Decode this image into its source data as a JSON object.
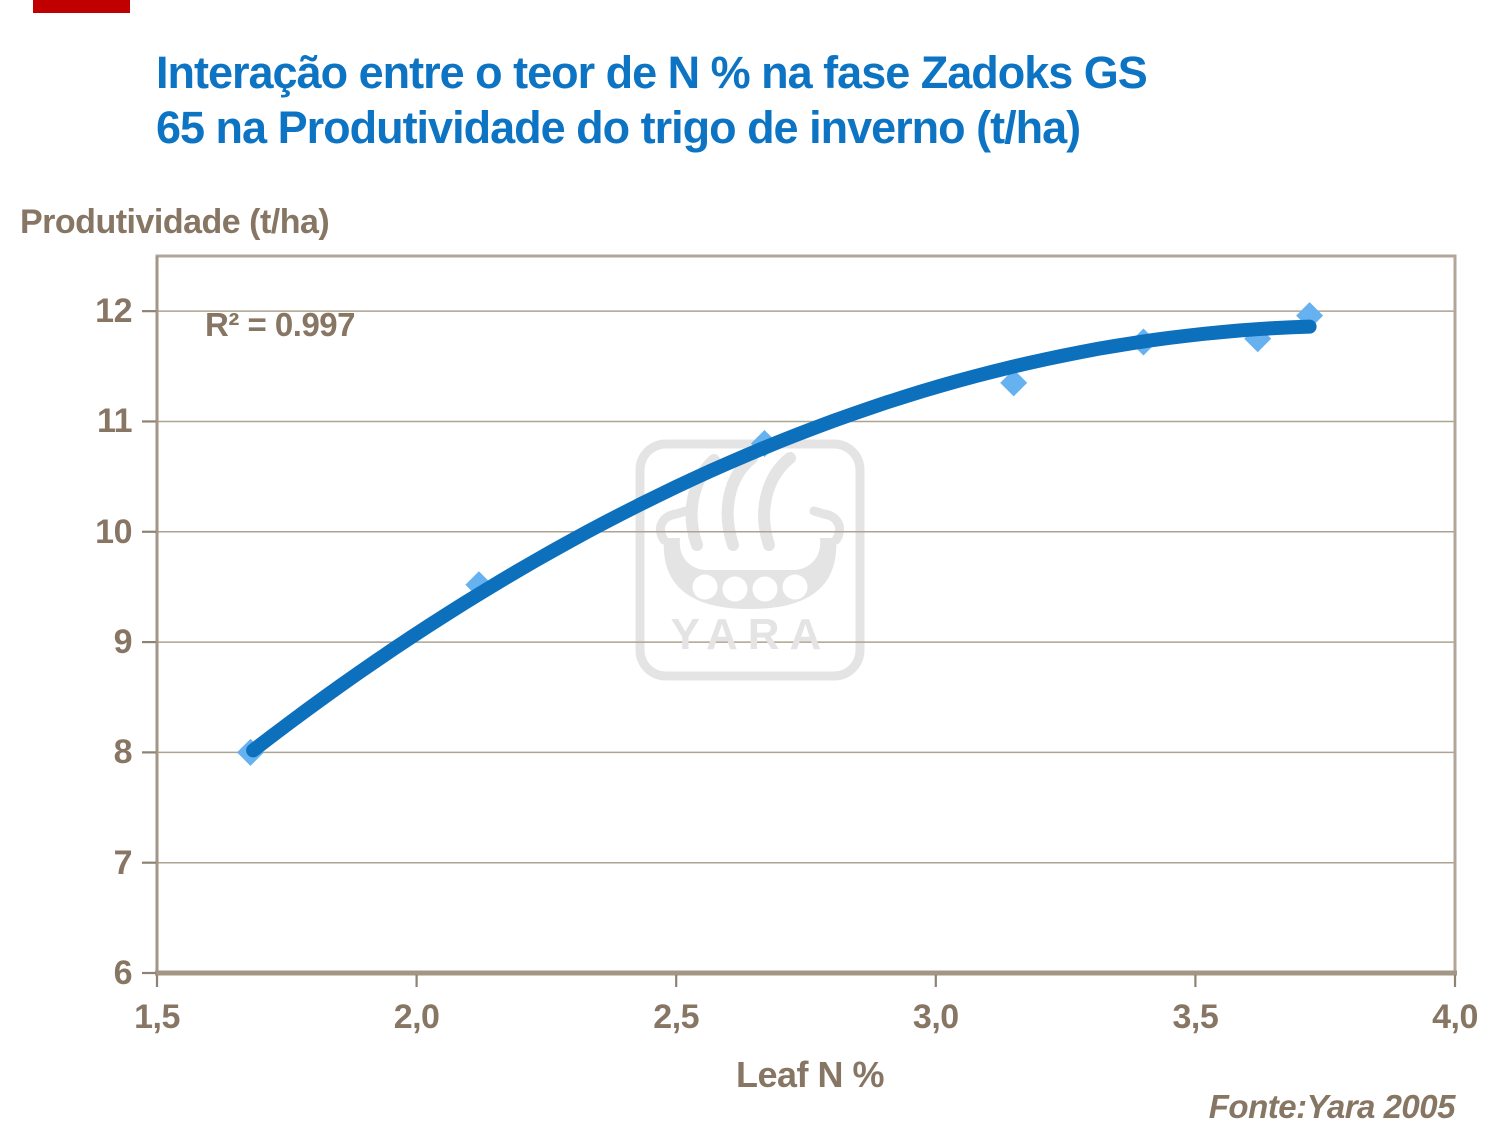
{
  "accent_bar_color": "#C00000",
  "title": {
    "text": "Interação entre o teor de N % na fase Zadoks GS\n65 na Produtividade do trigo de inverno (t/ha)",
    "color": "#0D74C4"
  },
  "source_note": "Fonte:Yara 2005",
  "watermark": {
    "text": "YARA",
    "color": "#E4E4E4"
  },
  "chart_data": {
    "type": "scatter",
    "title": "Interação entre o teor de N % na fase Zadoks GS 65 na Produtividade do trigo de inverno (t/ha)",
    "ylabel": "Produtividade (t/ha)",
    "xlabel": "Leaf N %",
    "r2_annotation": "R² = 0.997",
    "xlim": [
      1.5,
      4.0
    ],
    "ylim": [
      6,
      12.5
    ],
    "grid": "horizontal",
    "legend": "none",
    "x_ticks": {
      "values": [
        1.5,
        2.0,
        2.5,
        3.0,
        3.5,
        4.0
      ],
      "labels": [
        "1,5",
        "2,0",
        "2,5",
        "3,0",
        "3,5",
        "4,0"
      ]
    },
    "y_ticks": {
      "values": [
        6,
        7,
        8,
        9,
        10,
        11,
        12
      ],
      "labels": [
        "6",
        "7",
        "8",
        "9",
        "10",
        "11",
        "12"
      ]
    },
    "points": [
      [
        1.68,
        8.0
      ],
      [
        2.12,
        9.52
      ],
      [
        2.67,
        10.8
      ],
      [
        3.15,
        11.35
      ],
      [
        3.4,
        11.72
      ],
      [
        3.62,
        11.75
      ],
      [
        3.72,
        11.96
      ]
    ],
    "trendline": {
      "form": "quadratic",
      "a": -0.525,
      "b": 6.5114,
      "c": -0.8554,
      "x_start": 1.685,
      "x_end": 3.72
    },
    "colors": {
      "line": "#0C70BD",
      "marker": "#66B1F0",
      "text_brown": "#877663",
      "frame": "#B3A698",
      "axis": "#A39684",
      "grid": "#AEA290",
      "tick": "#8F8272",
      "watermark": "#E4E4E4"
    }
  }
}
